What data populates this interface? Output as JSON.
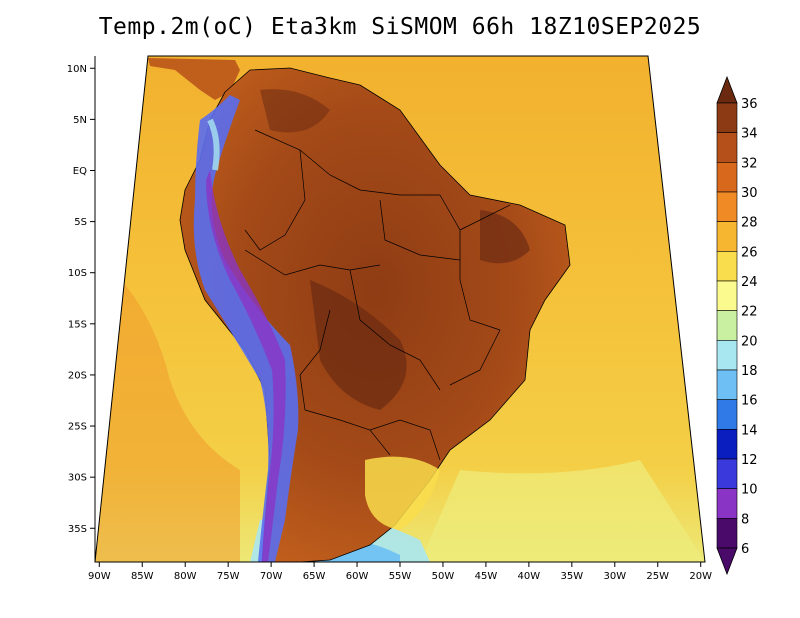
{
  "title": "Temp.2m(oC) Eta3km SiSMOM 66h 18Z10SEP2025",
  "map": {
    "lat_labels": [
      "10N",
      "5N",
      "EQ",
      "5S",
      "10S",
      "15S",
      "20S",
      "25S",
      "30S",
      "35S"
    ],
    "lat_values": [
      10,
      5,
      0,
      -5,
      -10,
      -15,
      -20,
      -25,
      -30,
      -35
    ],
    "lon_labels": [
      "90W",
      "85W",
      "80W",
      "75W",
      "70W",
      "65W",
      "60W",
      "55W",
      "50W",
      "45W",
      "40W",
      "35W",
      "30W",
      "25W",
      "20W"
    ],
    "lon_values": [
      -90,
      -85,
      -80,
      -75,
      -70,
      -65,
      -60,
      -55,
      -50,
      -45,
      -40,
      -35,
      -30,
      -25,
      -20
    ],
    "lon_range": [
      -90.5,
      -19.5
    ],
    "lat_range": [
      -38.3,
      11.2
    ]
  },
  "colorbar": {
    "labels": [
      "36",
      "34",
      "32",
      "30",
      "28",
      "26",
      "24",
      "22",
      "20",
      "18",
      "16",
      "14",
      "12",
      "10",
      "8",
      "6"
    ],
    "colors": [
      "#6b2a10",
      "#8b3a14",
      "#b5501a",
      "#d8681c",
      "#ef8a24",
      "#f6b630",
      "#f9dd4c",
      "#fafa8e",
      "#c8f0a0",
      "#a8e6f0",
      "#6ec0f4",
      "#2f7ae6",
      "#0a1ec0",
      "#3a3adc",
      "#8a34c6",
      "#4a0a6a"
    ]
  },
  "palette": {
    "ocean_north": "#f3c53c",
    "ocean_south_cool": "#e7ea72",
    "continent_hot": "#a24818",
    "continent_very_hot": "#6e2c12",
    "andes_cold": "#5a6ef0",
    "coast_line": "#000000"
  }
}
